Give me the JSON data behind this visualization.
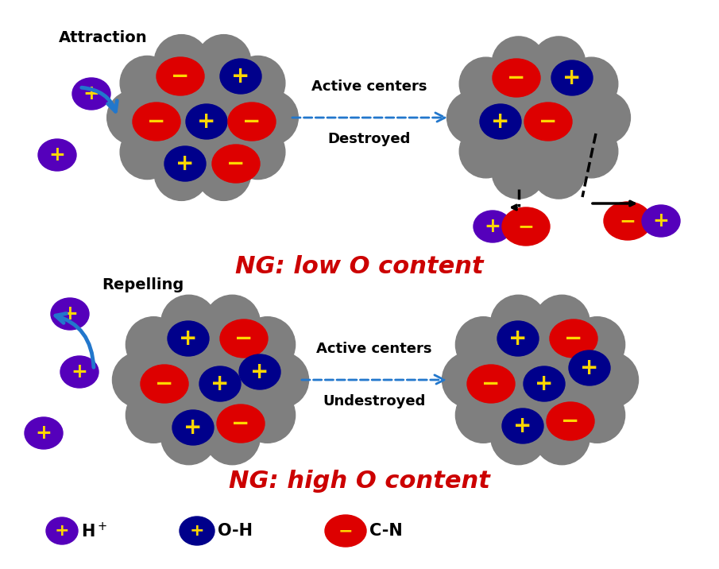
{
  "bg_color": "#ffffff",
  "gray_cloud_color": "#7f7f7f",
  "purple_color": "#5500bb",
  "dark_blue_color": "#00008B",
  "red_color": "#dd0000",
  "yellow_color": "#FFD700",
  "blue_arrow_color": "#2277cc",
  "title1": "NG: low O content",
  "title2": "NG: high O content",
  "title_color": "#cc0000",
  "title_fontsize": 22,
  "text_attraction": "Attraction",
  "text_repelling": "Repelling",
  "text_active_centers": "Active centers",
  "text_destroyed": "Destroyed",
  "text_undestroyed": "Undestroyed"
}
